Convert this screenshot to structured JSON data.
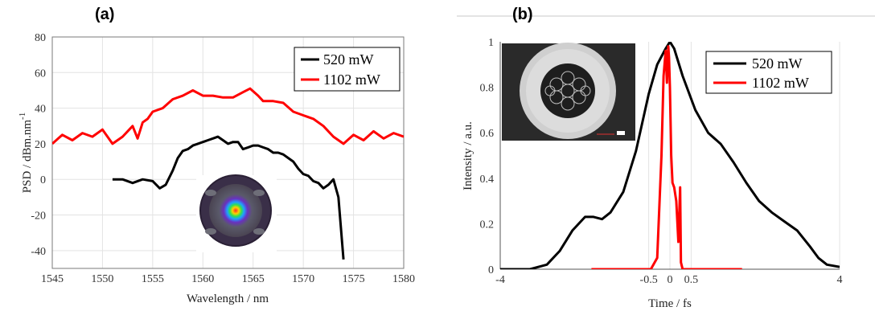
{
  "panels": [
    {
      "label": "(a)"
    },
    {
      "label": "(b)"
    }
  ],
  "chart_data": [
    {
      "type": "line",
      "panel": "(a)",
      "xlabel": "Wavelength / nm",
      "ylabel": "PSD / dBm.nm",
      "ylabel_sup": "-1",
      "xlim": [
        1545,
        1580
      ],
      "ylim": [
        -50,
        80
      ],
      "xticks": [
        1545,
        1550,
        1555,
        1560,
        1565,
        1570,
        1575,
        1580
      ],
      "yticks": [
        -40,
        -20,
        0,
        20,
        40,
        60,
        80
      ],
      "grid": true,
      "legend_position": "top-right",
      "inset": "beam-profile-image",
      "series": [
        {
          "name": "520 mW",
          "color": "#000000",
          "x": [
            1551.0,
            1552.0,
            1553.0,
            1554.0,
            1555.0,
            1555.7,
            1556.3,
            1557.0,
            1557.5,
            1558.0,
            1558.5,
            1559.0,
            1559.5,
            1560.0,
            1560.5,
            1561.0,
            1561.5,
            1562.0,
            1562.5,
            1563.0,
            1563.5,
            1564.0,
            1564.5,
            1565.0,
            1565.5,
            1566.0,
            1566.5,
            1567.0,
            1567.5,
            1568.0,
            1568.5,
            1569.0,
            1569.5,
            1570.0,
            1570.5,
            1571.0,
            1571.5,
            1572.0,
            1572.5,
            1573.0,
            1573.5,
            1574.0
          ],
          "y": [
            0,
            0,
            -2,
            0,
            -1,
            -5,
            -3,
            5,
            12,
            16,
            17,
            19,
            20,
            21,
            22,
            23,
            24,
            22,
            20,
            21,
            21,
            17,
            18,
            19,
            19,
            18,
            17,
            15,
            15,
            14,
            12,
            10,
            6,
            3,
            2,
            -1,
            -2,
            -5,
            -3,
            0,
            -10,
            -45
          ]
        },
        {
          "name": "1102 mW",
          "color": "#ff0000",
          "x": [
            1545.0,
            1546.0,
            1547.0,
            1548.0,
            1549.0,
            1550.0,
            1551.0,
            1552.0,
            1553.0,
            1553.5,
            1554.0,
            1554.5,
            1555.0,
            1556.0,
            1557.0,
            1558.0,
            1559.0,
            1560.0,
            1561.0,
            1562.0,
            1563.0,
            1564.0,
            1564.7,
            1565.5,
            1566.0,
            1567.0,
            1568.0,
            1569.0,
            1570.0,
            1571.0,
            1572.0,
            1573.0,
            1574.0,
            1575.0,
            1576.0,
            1577.0,
            1578.0,
            1579.0,
            1580.0
          ],
          "y": [
            20,
            25,
            22,
            26,
            24,
            28,
            20,
            24,
            30,
            23,
            32,
            34,
            38,
            40,
            45,
            47,
            50,
            47,
            47,
            46,
            46,
            49,
            51,
            47,
            44,
            44,
            43,
            38,
            36,
            34,
            30,
            24,
            20,
            25,
            22,
            27,
            23,
            26,
            24
          ]
        }
      ]
    },
    {
      "type": "line",
      "panel": "(b)",
      "xlabel": "Time / fs",
      "ylabel": "Intensity / a.u.",
      "xlim": [
        -4,
        4
      ],
      "ylim": [
        0,
        1
      ],
      "xticks": [
        -4,
        -0.5,
        0,
        0.5,
        4
      ],
      "xticklabels": [
        "-4",
        "-0.5",
        "0",
        "0.5",
        "4"
      ],
      "yticks": [
        0,
        0.2,
        0.4,
        0.6,
        0.8,
        1
      ],
      "grid": true,
      "legend_position": "top-right",
      "inset": "fiber-cross-section-image",
      "series": [
        {
          "name": "520 mW",
          "color": "#000000",
          "x": [
            -4.0,
            -3.3,
            -2.9,
            -2.6,
            -2.3,
            -2.0,
            -1.8,
            -1.6,
            -1.4,
            -1.1,
            -0.8,
            -0.5,
            -0.3,
            -0.1,
            0.0,
            0.1,
            0.3,
            0.6,
            0.9,
            1.2,
            1.5,
            1.8,
            2.1,
            2.4,
            2.7,
            3.0,
            3.3,
            3.5,
            3.7,
            4.0
          ],
          "y": [
            0.0,
            0.0,
            0.02,
            0.08,
            0.17,
            0.23,
            0.23,
            0.22,
            0.25,
            0.34,
            0.52,
            0.77,
            0.9,
            0.97,
            1.0,
            0.97,
            0.85,
            0.7,
            0.6,
            0.55,
            0.47,
            0.38,
            0.3,
            0.25,
            0.21,
            0.17,
            0.1,
            0.05,
            0.02,
            0.01
          ]
        },
        {
          "name": "1102 mW",
          "color": "#ff0000",
          "x": [
            -1.85,
            -0.6,
            -0.45,
            -0.3,
            -0.2,
            -0.15,
            -0.1,
            -0.07,
            -0.04,
            -0.02,
            0.0,
            0.03,
            0.06,
            0.1,
            0.15,
            0.2,
            0.24,
            0.26,
            0.3,
            0.45,
            1.7
          ],
          "y": [
            0.0,
            0.0,
            0.0,
            0.05,
            0.5,
            0.85,
            0.96,
            0.82,
            0.98,
            0.93,
            0.8,
            0.5,
            0.38,
            0.36,
            0.3,
            0.12,
            0.36,
            0.03,
            0.0,
            0.0,
            0.0
          ]
        }
      ]
    }
  ]
}
